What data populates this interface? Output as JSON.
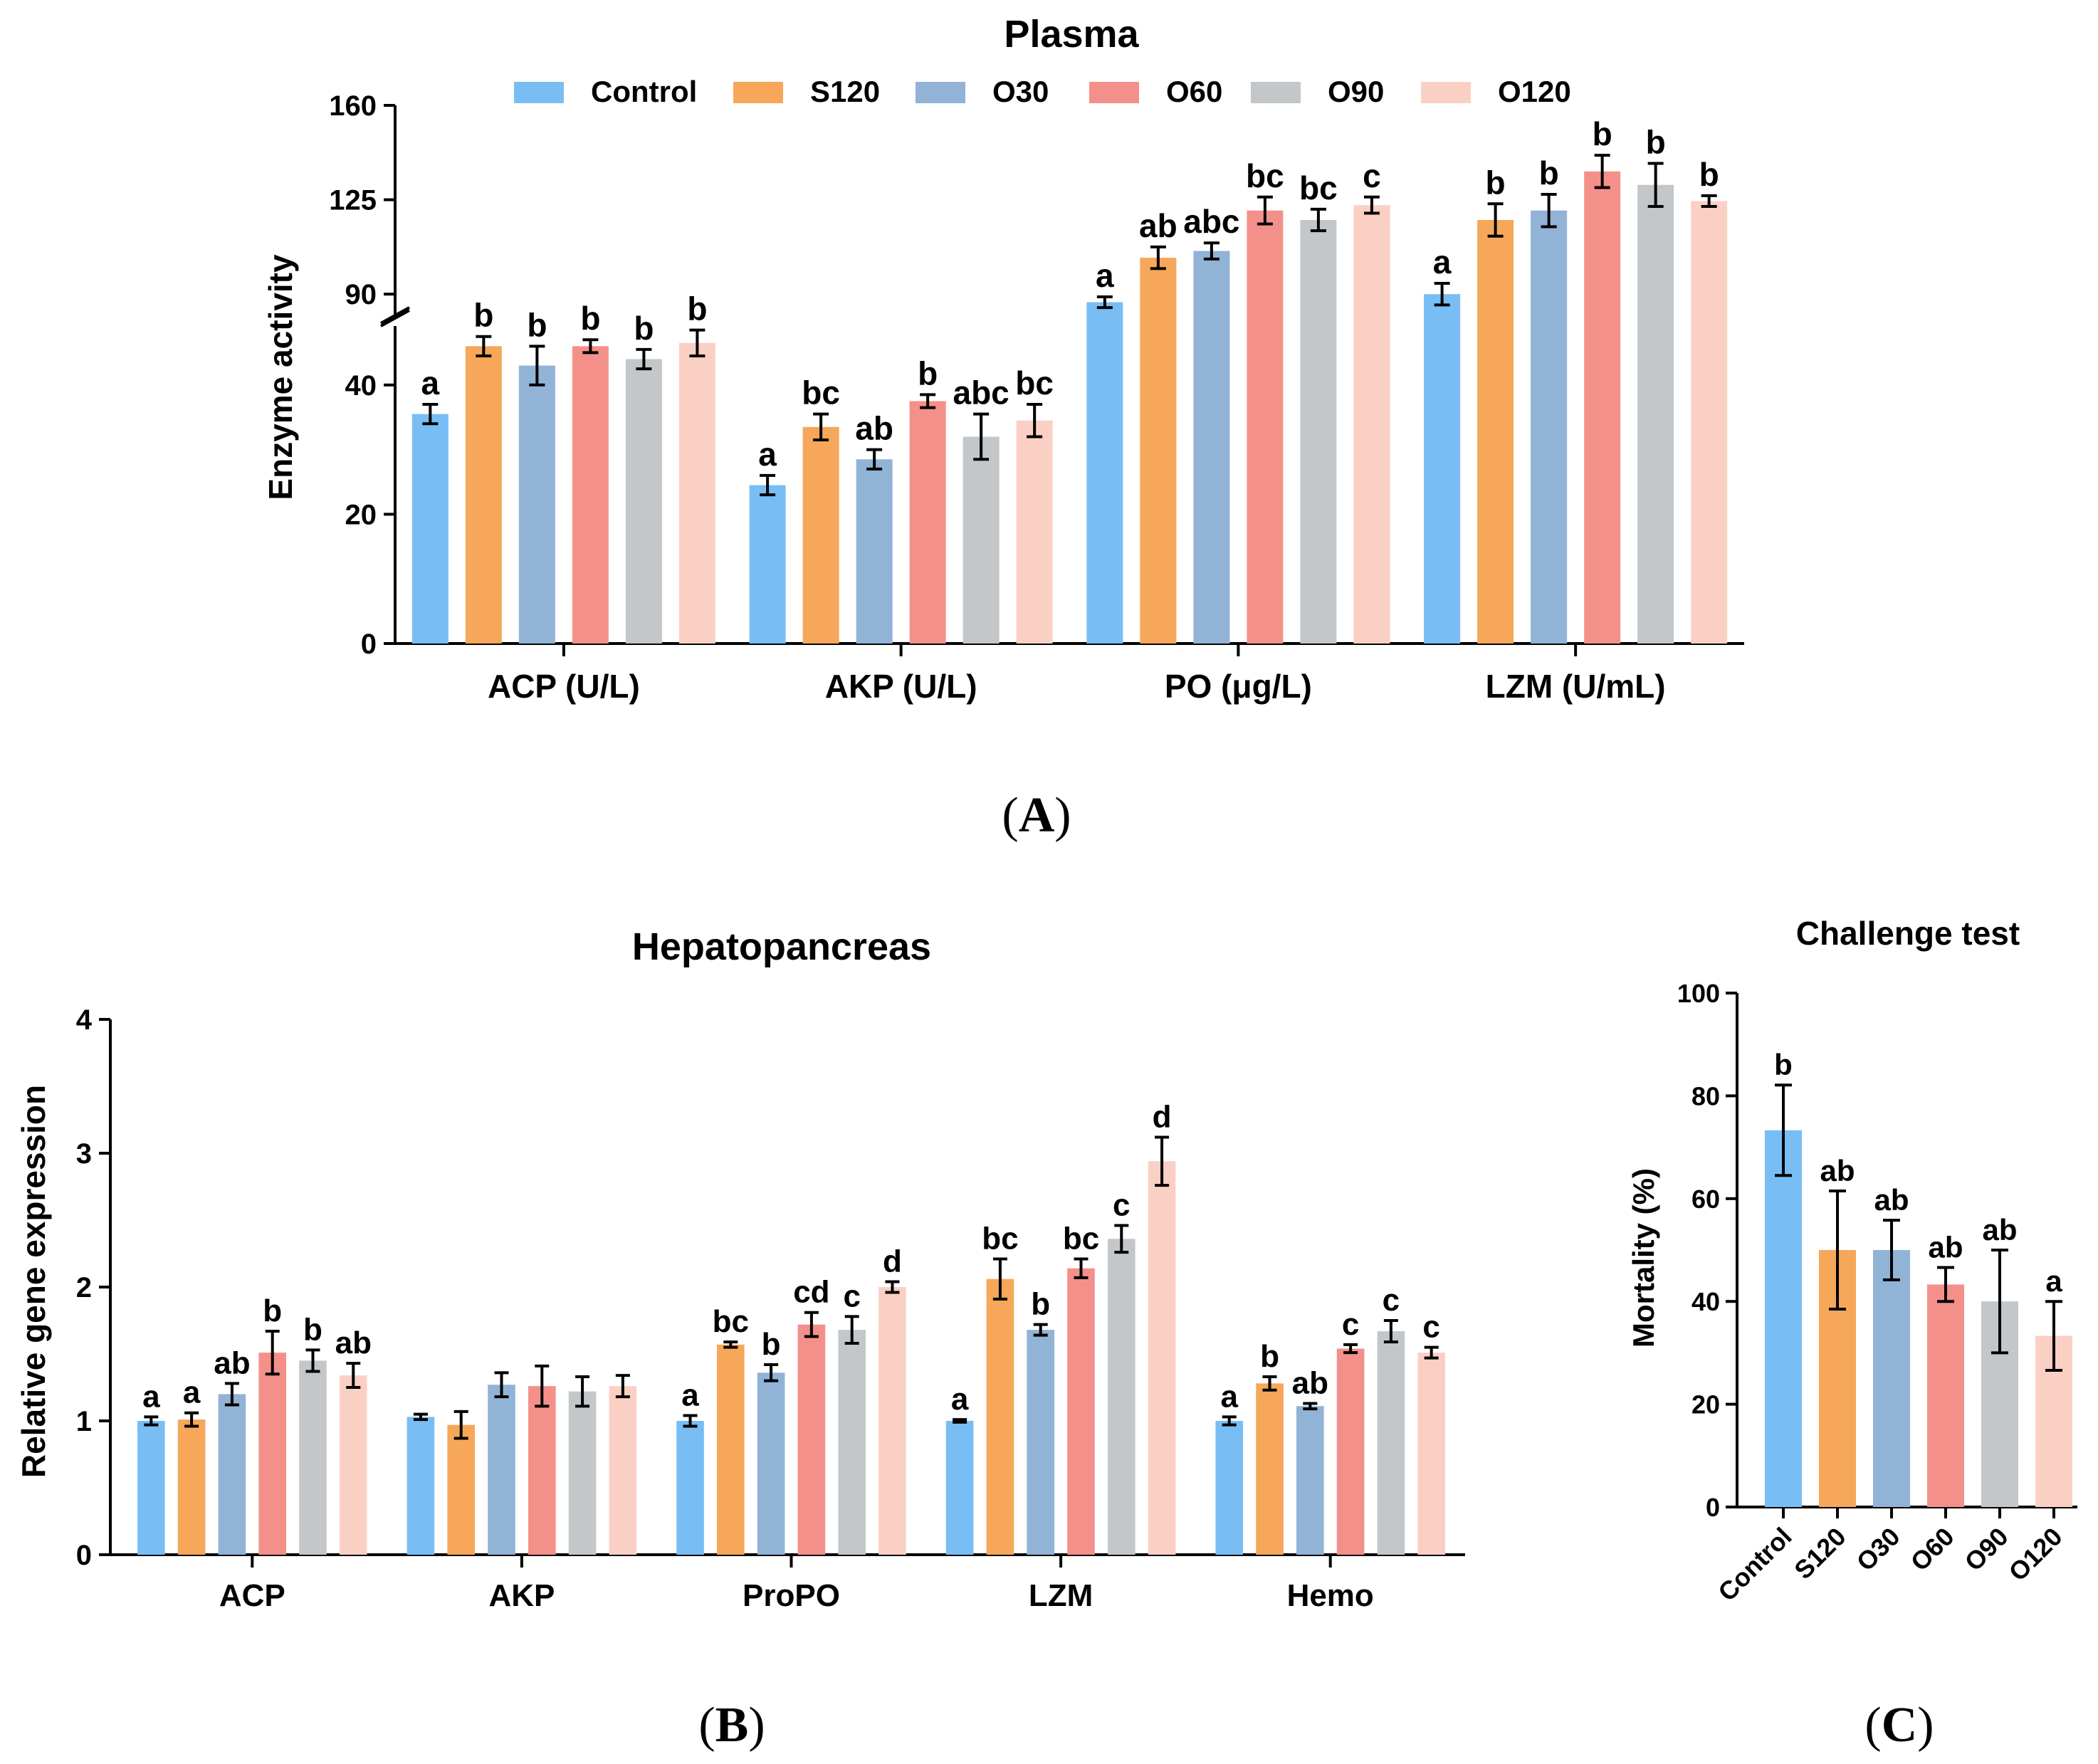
{
  "colors": {
    "Control": "#78bef5",
    "S120": "#f6a75a",
    "O30": "#91b3d6",
    "O60": "#f4908a",
    "O90": "#c3c7c9",
    "O120": "#fbd0c4"
  },
  "legend": [
    "Control",
    "S120",
    "O30",
    "O60",
    "O90",
    "O120"
  ],
  "panel_labels": {
    "A": {
      "open": "(",
      "letter": "A",
      "close": ")"
    },
    "B": {
      "open": "(",
      "letter": "B",
      "close": ")"
    },
    "C": {
      "open": "(",
      "letter": "C",
      "close": ")"
    }
  },
  "chart_data": [
    {
      "id": "A",
      "type": "bar",
      "title": "Plasma",
      "xlabel": "",
      "ylabel": "Enzyme activity",
      "axis_break": {
        "lower": [
          0,
          50
        ],
        "upper": [
          75,
          160
        ]
      },
      "yticks": [
        0,
        20,
        40,
        90,
        125,
        160
      ],
      "categories": [
        "ACP (U/L)",
        "AKP (U/L)",
        "PO (μg/L)",
        "LZM (U/mL)"
      ],
      "series": [
        {
          "name": "Control",
          "values": [
            35.5,
            24.5,
            87.0,
            90.0
          ],
          "errors": [
            1.5,
            1.5,
            2.0,
            4.0
          ],
          "letters": [
            "a",
            "a",
            "a",
            "a"
          ]
        },
        {
          "name": "S120",
          "values": [
            46.0,
            33.5,
            103.5,
            117.5
          ],
          "errors": [
            1.5,
            2.0,
            4.0,
            6.0
          ],
          "letters": [
            "b",
            "bc",
            "ab",
            "b"
          ]
        },
        {
          "name": "O30",
          "values": [
            43.0,
            28.5,
            106.0,
            121.0
          ],
          "errors": [
            3.0,
            1.5,
            3.0,
            6.0
          ],
          "letters": [
            "b",
            "ab",
            "abc",
            "b"
          ]
        },
        {
          "name": "O60",
          "values": [
            46.0,
            37.5,
            121.0,
            135.5
          ],
          "errors": [
            1.0,
            1.0,
            5.0,
            6.0
          ],
          "letters": [
            "b",
            "b",
            "bc",
            "b"
          ]
        },
        {
          "name": "O90",
          "values": [
            44.0,
            32.0,
            117.5,
            130.5
          ],
          "errors": [
            1.5,
            3.5,
            4.0,
            8.0
          ],
          "letters": [
            "b",
            "abc",
            "bc",
            "b"
          ]
        },
        {
          "name": "O120",
          "values": [
            46.5,
            34.5,
            123.0,
            124.5
          ],
          "errors": [
            2.0,
            2.5,
            3.0,
            2.0
          ],
          "letters": [
            "b",
            "bc",
            "c",
            "b"
          ]
        }
      ]
    },
    {
      "id": "B",
      "type": "bar",
      "title": "Hepatopancreas",
      "xlabel": "",
      "ylabel": "Relative gene expression",
      "ylim": [
        0,
        4
      ],
      "yticks": [
        0,
        1,
        2,
        3,
        4
      ],
      "categories": [
        "ACP",
        "AKP",
        "ProPO",
        "LZM",
        "Hemo"
      ],
      "series": [
        {
          "name": "Control",
          "values": [
            1.0,
            1.03,
            1.0,
            1.0,
            1.0
          ],
          "errors": [
            0.03,
            0.02,
            0.04,
            0.01,
            0.03
          ],
          "letters": [
            "a",
            "",
            "a",
            "a",
            "a"
          ]
        },
        {
          "name": "S120",
          "values": [
            1.01,
            0.97,
            1.57,
            2.06,
            1.28
          ],
          "errors": [
            0.05,
            0.1,
            0.02,
            0.15,
            0.05
          ],
          "letters": [
            "a",
            "",
            "bc",
            "bc",
            "b"
          ]
        },
        {
          "name": "O30",
          "values": [
            1.2,
            1.27,
            1.36,
            1.68,
            1.11
          ],
          "errors": [
            0.08,
            0.09,
            0.06,
            0.04,
            0.02
          ],
          "letters": [
            "ab",
            "",
            "b",
            "b",
            "ab"
          ]
        },
        {
          "name": "O60",
          "values": [
            1.51,
            1.26,
            1.72,
            2.14,
            1.54
          ],
          "errors": [
            0.16,
            0.15,
            0.09,
            0.07,
            0.03
          ],
          "letters": [
            "b",
            "",
            "cd",
            "bc",
            "c"
          ]
        },
        {
          "name": "O90",
          "values": [
            1.45,
            1.22,
            1.68,
            2.36,
            1.67
          ],
          "errors": [
            0.08,
            0.11,
            0.1,
            0.1,
            0.08
          ],
          "letters": [
            "b",
            "",
            "c",
            "c",
            "c"
          ]
        },
        {
          "name": "O120",
          "values": [
            1.34,
            1.26,
            2.0,
            2.94,
            1.51
          ],
          "errors": [
            0.09,
            0.08,
            0.04,
            0.18,
            0.04
          ],
          "letters": [
            "ab",
            "",
            "d",
            "d",
            "c"
          ]
        }
      ]
    },
    {
      "id": "C",
      "type": "bar",
      "title": "Challenge test",
      "xlabel": "",
      "ylabel": "Mortality (%)",
      "ylim": [
        0,
        100
      ],
      "yticks": [
        0,
        20,
        40,
        60,
        80,
        100
      ],
      "categories": [
        "Control",
        "S120",
        "O30",
        "O60",
        "O90",
        "O120"
      ],
      "values": [
        73.3,
        50.0,
        50.0,
        43.3,
        40.0,
        33.3
      ],
      "errors": [
        8.8,
        11.5,
        5.8,
        3.3,
        10.0,
        6.7
      ],
      "letters": [
        "b",
        "ab",
        "ab",
        "ab",
        "ab",
        "a"
      ]
    }
  ]
}
